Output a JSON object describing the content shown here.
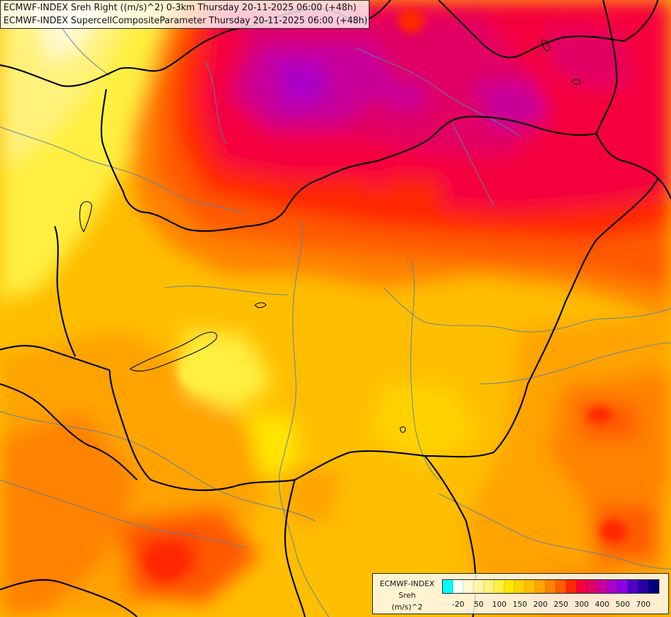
{
  "map": {
    "title_line1": "ECMWF-INDEX Sreh Right ((m/s)^2) 0-3km Thursday 20-11-2025 06:00 (+48h)",
    "title_line2": "ECMWF-INDEX SupercellCompositeParameter Thursday 20-11-2025 06:00 (+48h)"
  },
  "legend": {
    "line1": "ECMWF-INDEX",
    "line2": "Sreh",
    "line3": "(m/s)^2",
    "colors": [
      "#00ffff",
      "#ffffff",
      "#fff9d0",
      "#fff5a8",
      "#fff27a",
      "#ffef40",
      "#ffe500",
      "#ffd200",
      "#ffbe00",
      "#ffa300",
      "#ff8200",
      "#ff5a00",
      "#ff2800",
      "#f5003c",
      "#e10064",
      "#c8009a",
      "#aa00c8",
      "#8c00e6",
      "#5000c8",
      "#2800a0",
      "#000080"
    ],
    "ticks": [
      "-20",
      "50",
      "100",
      "150",
      "200",
      "250",
      "300",
      "400",
      "500",
      "700"
    ]
  }
}
